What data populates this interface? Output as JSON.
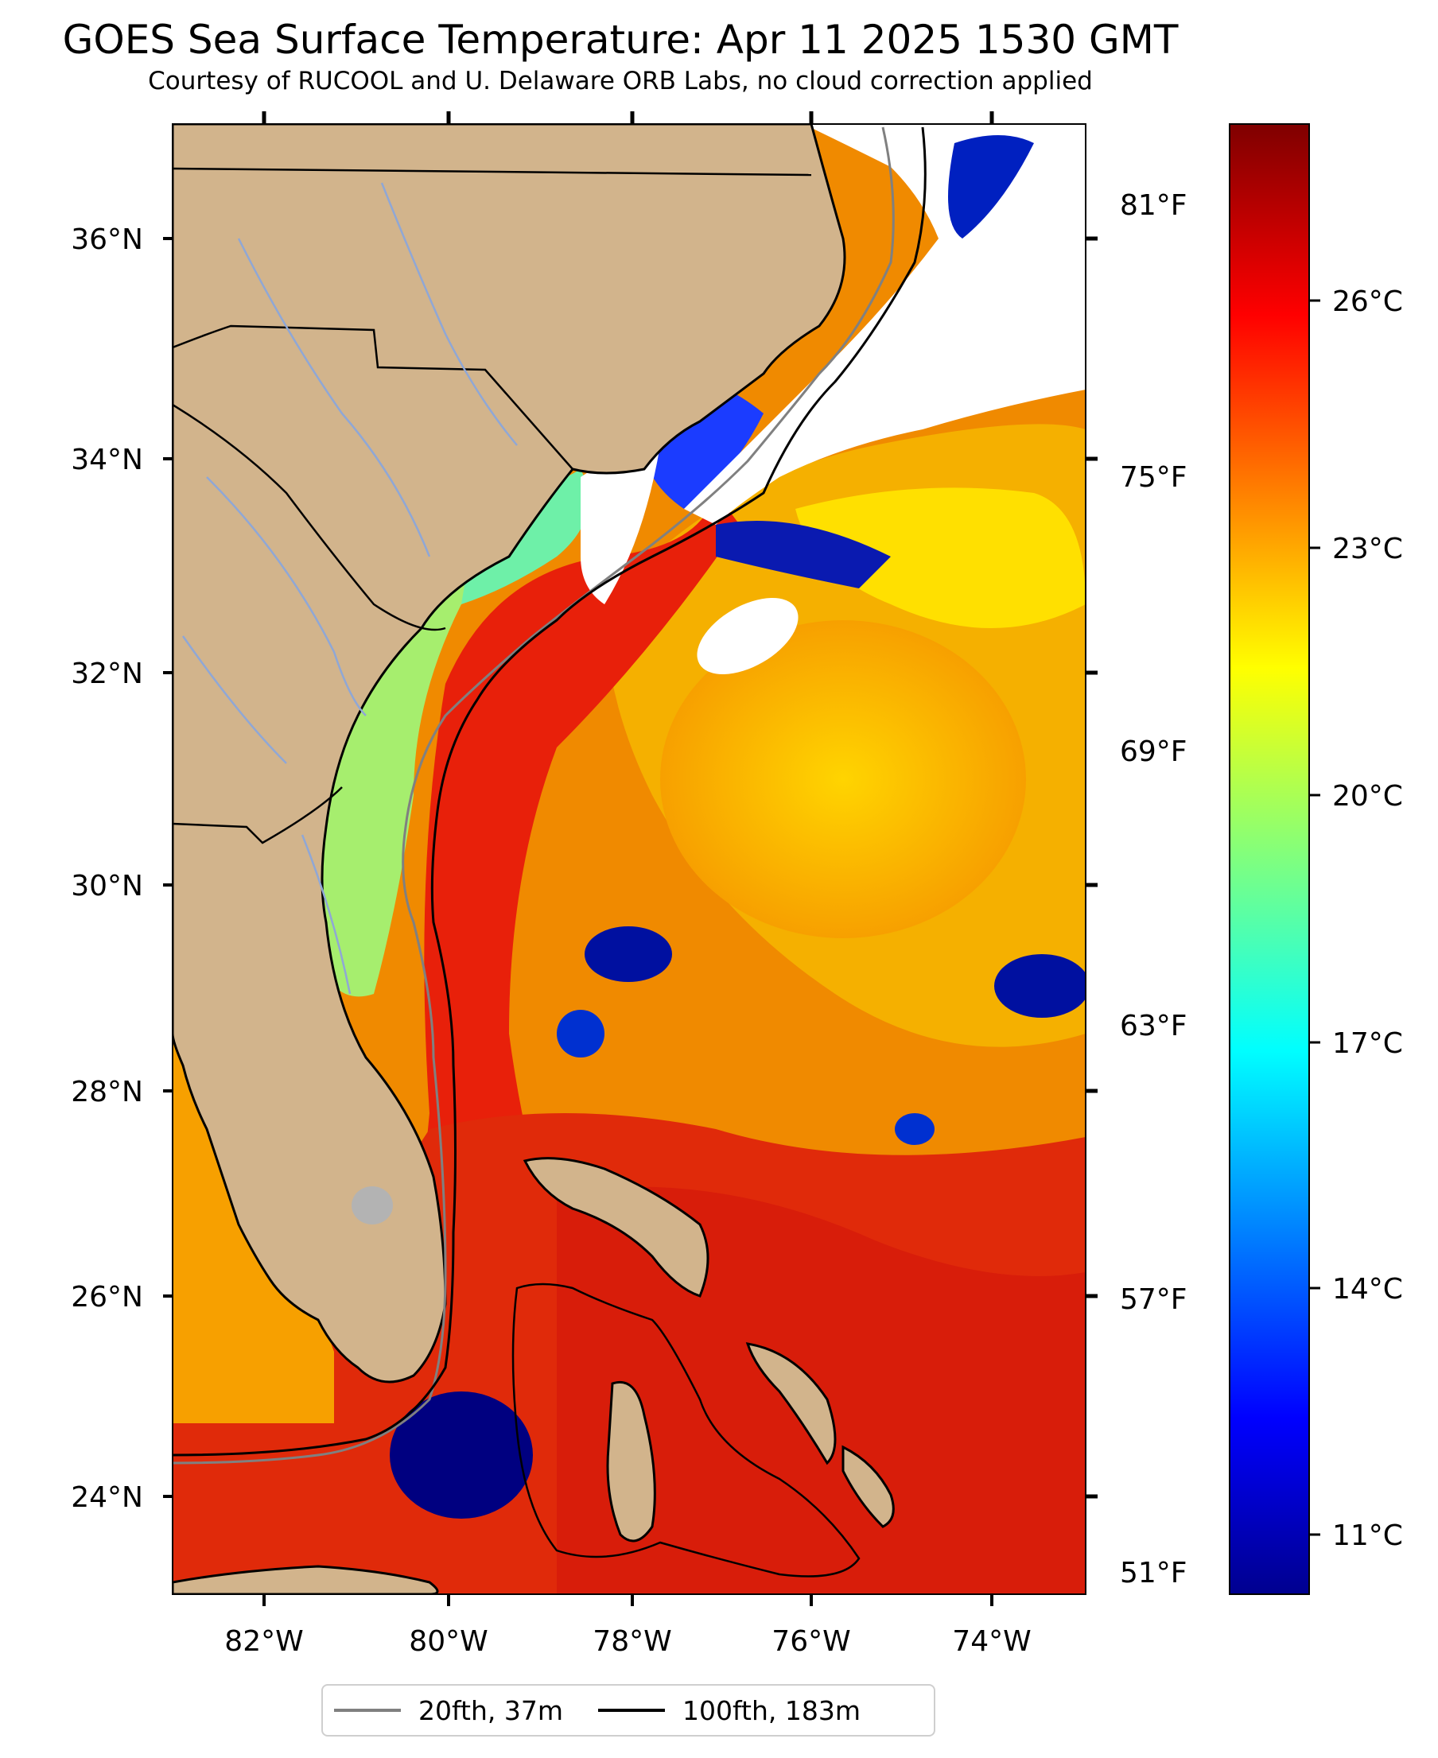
{
  "title": "GOES Sea Surface Temperature: Apr 11 2025 1530 GMT",
  "subtitle": "Courtesy of RUCOOL and U. Delaware ORB Labs, no cloud correction applied",
  "map": {
    "lon_range": [
      -83,
      -73
    ],
    "lat_range": [
      23.1,
      37.1
    ],
    "lat_labels": [
      "36°N",
      "34°N",
      "32°N",
      "30°N",
      "28°N",
      "26°N",
      "24°N"
    ],
    "lon_labels": [
      "82°W",
      "80°W",
      "78°W",
      "76°W",
      "74°W"
    ],
    "fahrenheit_labels": [
      "81°F",
      "75°F",
      "69°F",
      "63°F",
      "57°F",
      "51°F"
    ],
    "colors": {
      "land": "#d2b48c",
      "cloud": "#ffffff",
      "gulf_stream": "#e01a0a",
      "shelf": "#9df07a",
      "sargasso": "#f6b400"
    }
  },
  "colorbar": {
    "colormap": "jet",
    "unit": "°C",
    "range_c": [
      9.8,
      28.2
    ],
    "ticks": [
      "26°C",
      "23°C",
      "20°C",
      "17°C",
      "14°C",
      "11°C"
    ]
  },
  "legend": {
    "items": [
      {
        "label": "20fth, 37m",
        "color": "#808080"
      },
      {
        "label": "100fth, 183m",
        "color": "#000000"
      }
    ]
  }
}
